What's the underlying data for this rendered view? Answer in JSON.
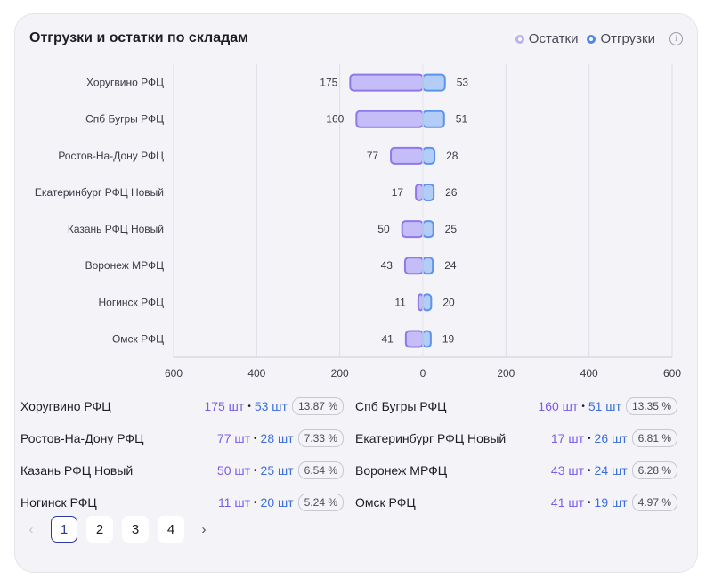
{
  "title": "Отгрузки и остатки по складам",
  "legend": [
    {
      "label": "Остатки",
      "color": "#b9b2ef"
    },
    {
      "label": "Отгрузки",
      "color": "#4f86ea"
    }
  ],
  "info_icon": "info-icon",
  "colors": {
    "stock_fill": "#c5bdf7",
    "stock_stroke": "#8f78ea",
    "ship_fill": "#b4cdf6",
    "ship_stroke": "#5b93ee"
  },
  "chart_data": {
    "type": "bar",
    "orientation": "horizontal-diverging",
    "categories": [
      "Хоругвино РФЦ",
      "Спб Бугры РФЦ",
      "Ростов-На-Дону РФЦ",
      "Екатеринбург РФЦ Новый",
      "Казань РФЦ Новый",
      "Воронеж МРФЦ",
      "Ногинск РФЦ",
      "Омск РФЦ"
    ],
    "series": [
      {
        "name": "Остатки",
        "side": "left",
        "values": [
          175,
          160,
          77,
          17,
          50,
          43,
          11,
          41
        ]
      },
      {
        "name": "Отгрузки",
        "side": "right",
        "values": [
          53,
          51,
          28,
          26,
          25,
          24,
          20,
          19
        ]
      }
    ],
    "xlim": [
      -600,
      600
    ],
    "x_ticks": [
      "600",
      "400",
      "200",
      "0",
      "200",
      "400",
      "600"
    ],
    "grid": true
  },
  "stats": [
    {
      "name": "Хоругвино РФЦ",
      "stock": "175 шт",
      "ship": "53 шт",
      "pct": "13.87 %"
    },
    {
      "name": "Спб Бугры РФЦ",
      "stock": "160 шт",
      "ship": "51 шт",
      "pct": "13.35 %"
    },
    {
      "name": "Ростов-На-Дону РФЦ",
      "stock": "77 шт",
      "ship": "28 шт",
      "pct": "7.33 %"
    },
    {
      "name": "Екатеринбург РФЦ Новый",
      "stock": "17 шт",
      "ship": "26 шт",
      "pct": "6.81 %"
    },
    {
      "name": "Казань РФЦ Новый",
      "stock": "50 шт",
      "ship": "25 шт",
      "pct": "6.54 %"
    },
    {
      "name": "Воронеж МРФЦ",
      "stock": "43 шт",
      "ship": "24 шт",
      "pct": "6.28 %"
    },
    {
      "name": "Ногинск РФЦ",
      "stock": "11 шт",
      "ship": "20 шт",
      "pct": "5.24 %"
    },
    {
      "name": "Омск РФЦ",
      "stock": "41 шт",
      "ship": "19 шт",
      "pct": "4.97 %"
    }
  ],
  "stats_separator": "•",
  "pagination": {
    "prev_icon": "chevron-left-icon",
    "next_icon": "chevron-right-icon",
    "prev_glyph": "‹",
    "next_glyph": "›",
    "pages": [
      "1",
      "2",
      "3",
      "4"
    ],
    "current": "1"
  }
}
